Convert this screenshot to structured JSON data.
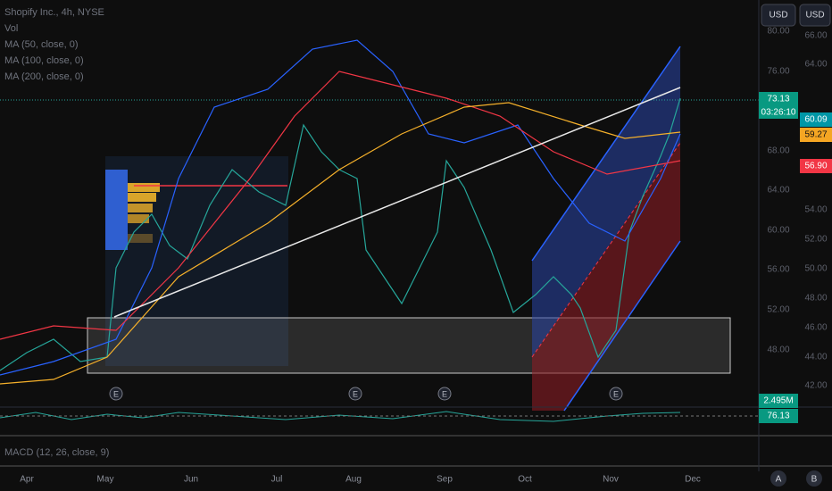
{
  "legend": {
    "title": "Shopify Inc., 4h, NYSE",
    "lines": [
      "Vol",
      "MA (50, close, 0)",
      "MA (100, close, 0)",
      "MA (200, close, 0)"
    ]
  },
  "currency_buttons": [
    "USD",
    "USD"
  ],
  "inner_scale": [
    "80.00",
    "76.00",
    "68.00",
    "64.00",
    "60.00",
    "56.00",
    "52.00",
    "48.00"
  ],
  "outer_scale": [
    "66.00",
    "64.00",
    "54.00",
    "52.00",
    "50.00",
    "48.00",
    "46.00",
    "44.00",
    "42.00"
  ],
  "badges": {
    "last_price": "73.13",
    "countdown": "03:26:10",
    "ma50": "60.09",
    "ma200": "59.27",
    "ma100": "56.90",
    "volume": "2.495M",
    "rsi": "76.13"
  },
  "earnings_marker": "E",
  "time_axis": [
    "Apr",
    "May",
    "Jun",
    "Jul",
    "Aug",
    "Sep",
    "Oct",
    "Nov",
    "Dec"
  ],
  "macd_label": "MACD (12, 26, close, 9)",
  "scale_buttons": [
    "A",
    "B"
  ]
}
